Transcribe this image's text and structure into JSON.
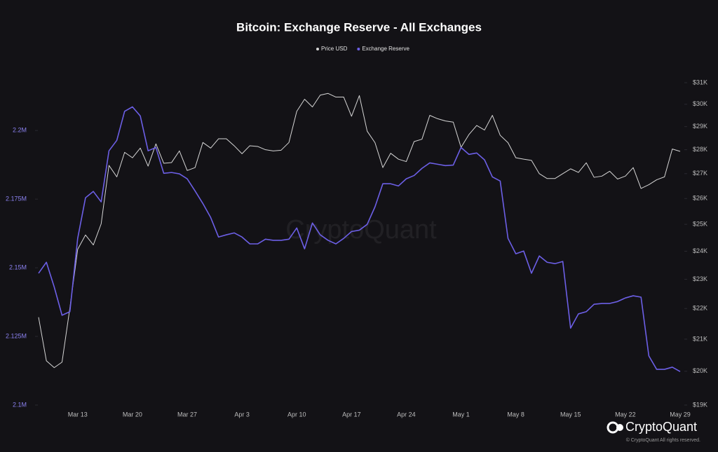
{
  "chart_data": {
    "type": "line",
    "title": "Bitcoin: Exchange Reserve - All Exchanges",
    "watermark": "CryptoQuant",
    "brand": "CryptoQuant",
    "copyright": "© CryptoQuant All rights reserved.",
    "categories": [
      null,
      null,
      null,
      null,
      null,
      "Mar 13",
      null,
      null,
      null,
      null,
      null,
      null,
      "Mar 20",
      null,
      null,
      null,
      null,
      null,
      null,
      "Mar 27",
      null,
      null,
      null,
      null,
      null,
      null,
      "Apr 3",
      null,
      null,
      null,
      null,
      null,
      null,
      "Apr 10",
      null,
      null,
      null,
      null,
      null,
      null,
      "Apr 17",
      null,
      null,
      null,
      null,
      null,
      null,
      "Apr 24",
      null,
      null,
      null,
      null,
      null,
      null,
      "May 1",
      null,
      null,
      null,
      null,
      null,
      null,
      "May 8",
      null,
      null,
      null,
      null,
      null,
      null,
      "May 15",
      null,
      null,
      null,
      null,
      null,
      null,
      "May 22",
      null,
      null,
      null,
      null,
      null,
      null,
      "May 29"
    ],
    "ylim": [
      2100000,
      2222000
    ],
    "yticks": [
      {
        "value": 2100000,
        "label": "2.1M"
      },
      {
        "value": 2125000,
        "label": "2.125M"
      },
      {
        "value": 2150000,
        "label": "2.15M"
      },
      {
        "value": 2175000,
        "label": "2.175M"
      },
      {
        "value": 2200000,
        "label": "2.2M"
      }
    ],
    "y2lim": [
      19000,
      31600
    ],
    "y2log": true,
    "y2ticks": [
      {
        "value": 19000,
        "label": "$19K"
      },
      {
        "value": 20000,
        "label": "$20K"
      },
      {
        "value": 21000,
        "label": "$21K"
      },
      {
        "value": 22000,
        "label": "$22K"
      },
      {
        "value": 23000,
        "label": "$23K"
      },
      {
        "value": 24000,
        "label": "$24K"
      },
      {
        "value": 25000,
        "label": "$25K"
      },
      {
        "value": 26000,
        "label": "$26K"
      },
      {
        "value": 27000,
        "label": "$27K"
      },
      {
        "value": 28000,
        "label": "$28K"
      },
      {
        "value": 29000,
        "label": "$29K"
      },
      {
        "value": 30000,
        "label": "$30K"
      },
      {
        "value": 31000,
        "label": "$31K"
      }
    ],
    "grid": false,
    "legend": "top",
    "series": [
      {
        "name": "Price USD",
        "color": "#d6d6d6",
        "axis": "y2",
        "values": [
          21710,
          20320,
          20110,
          20280,
          22010,
          24070,
          24600,
          24230,
          25020,
          27340,
          26870,
          27890,
          27660,
          28070,
          27310,
          28250,
          27430,
          27460,
          27950,
          27130,
          27250,
          28310,
          28070,
          28470,
          28470,
          28170,
          27830,
          28170,
          28140,
          28000,
          27950,
          27980,
          28310,
          29680,
          30230,
          29880,
          30420,
          30500,
          30330,
          30330,
          29460,
          30400,
          28800,
          28300,
          27250,
          27850,
          27600,
          27500,
          28350,
          28450,
          29500,
          29350,
          29250,
          29200,
          28100,
          28650,
          29050,
          28850,
          29500,
          28620,
          28300,
          27660,
          27600,
          27550,
          27000,
          26800,
          26800,
          27000,
          27200,
          27050,
          27450,
          26850,
          26900,
          27100,
          26780,
          26900,
          27250,
          26400,
          26550,
          26750,
          26870,
          28030,
          27930
        ]
      },
      {
        "name": "Exchange Reserve",
        "color": "#6c5fe6",
        "axis": "y",
        "values": [
          2148000,
          2152000,
          2143000,
          2132700,
          2134000,
          2160700,
          2175500,
          2177800,
          2174000,
          2192600,
          2196400,
          2207000,
          2208600,
          2205300,
          2192600,
          2193800,
          2184400,
          2184700,
          2184200,
          2182400,
          2178000,
          2173400,
          2168300,
          2161200,
          2162000,
          2162700,
          2161200,
          2158700,
          2158700,
          2160400,
          2160000,
          2160000,
          2160400,
          2164500,
          2156900,
          2166300,
          2162000,
          2160000,
          2158700,
          2160700,
          2163200,
          2163700,
          2165800,
          2172200,
          2180600,
          2180600,
          2179800,
          2182400,
          2183600,
          2186200,
          2188200,
          2187700,
          2187200,
          2187400,
          2193800,
          2191300,
          2191800,
          2189300,
          2183100,
          2181600,
          2160700,
          2155100,
          2156100,
          2148000,
          2154300,
          2152000,
          2151500,
          2152300,
          2128000,
          2133200,
          2134000,
          2136700,
          2137000,
          2137000,
          2137700,
          2139000,
          2139800,
          2139300,
          2117900,
          2113000,
          2113000,
          2113800,
          2112200
        ]
      }
    ]
  }
}
